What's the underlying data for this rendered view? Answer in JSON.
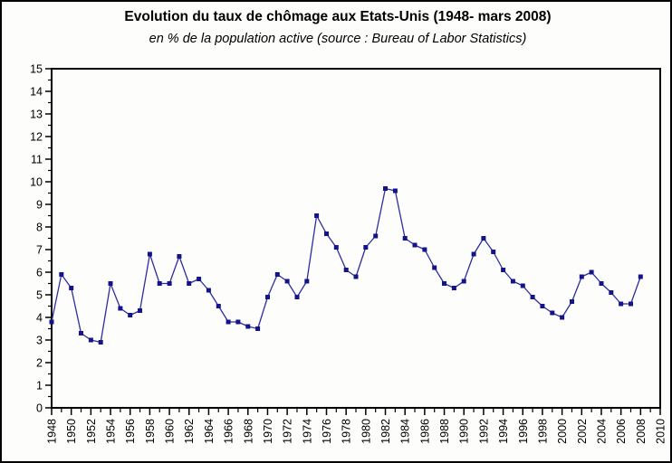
{
  "chart": {
    "title": "Evolution du taux de chômage aux Etats-Unis (1948- mars 2008)",
    "subtitle": "en % de la population active (source : Bureau of Labor Statistics)"
  },
  "chart_data": {
    "type": "line",
    "title": "Evolution du taux de chômage aux Etats-Unis (1948- mars 2008)",
    "subtitle": "en % de la population active (source : Bureau of Labor Statistics)",
    "xlabel": "",
    "ylabel": "",
    "xlim": [
      1948,
      2010
    ],
    "ylim": [
      0,
      15
    ],
    "grid": false,
    "legend": false,
    "marker": "square",
    "line_color": "#2e2e9e",
    "marker_color": "#14148a",
    "axis_color": "#000000",
    "x_tick_labels": [
      1948,
      1950,
      1952,
      1954,
      1956,
      1958,
      1960,
      1962,
      1964,
      1966,
      1968,
      1970,
      1972,
      1974,
      1976,
      1978,
      1980,
      1982,
      1984,
      1986,
      1988,
      1990,
      1992,
      1994,
      1996,
      1998,
      2000,
      2002,
      2004,
      2006,
      2008,
      2010
    ],
    "x_minor_step": 1,
    "y_tick_labels": [
      0,
      1,
      2,
      3,
      4,
      5,
      6,
      7,
      8,
      9,
      10,
      11,
      12,
      13,
      14,
      15
    ],
    "y_minor_step": 0.5,
    "last_x_label": "mars 2008",
    "series": [
      {
        "name": "taux de chômage",
        "x": [
          1948,
          1949,
          1950,
          1951,
          1952,
          1953,
          1954,
          1955,
          1956,
          1957,
          1958,
          1959,
          1960,
          1961,
          1962,
          1963,
          1964,
          1965,
          1966,
          1967,
          1968,
          1969,
          1970,
          1971,
          1972,
          1973,
          1974,
          1975,
          1976,
          1977,
          1978,
          1979,
          1980,
          1981,
          1982,
          1983,
          1984,
          1985,
          1986,
          1987,
          1988,
          1989,
          1990,
          1991,
          1992,
          1993,
          1994,
          1995,
          1996,
          1997,
          1998,
          1999,
          2000,
          2001,
          2002,
          2003,
          2004,
          2005,
          2006,
          2007,
          2008
        ],
        "y": [
          3.8,
          5.9,
          5.3,
          3.3,
          3.0,
          2.9,
          5.5,
          4.4,
          4.1,
          4.3,
          6.8,
          5.5,
          5.5,
          6.7,
          5.5,
          5.7,
          5.2,
          4.5,
          3.8,
          3.8,
          3.6,
          3.5,
          4.9,
          5.9,
          5.6,
          4.9,
          5.6,
          8.5,
          7.7,
          7.1,
          6.1,
          5.8,
          7.1,
          7.6,
          9.7,
          9.6,
          7.5,
          7.2,
          7.0,
          6.2,
          5.5,
          5.3,
          5.6,
          6.8,
          7.5,
          6.9,
          6.1,
          5.6,
          5.4,
          4.9,
          4.5,
          4.2,
          4.0,
          4.7,
          5.8,
          6.0,
          5.5,
          5.1,
          4.6,
          4.6,
          5.8
        ]
      }
    ]
  }
}
